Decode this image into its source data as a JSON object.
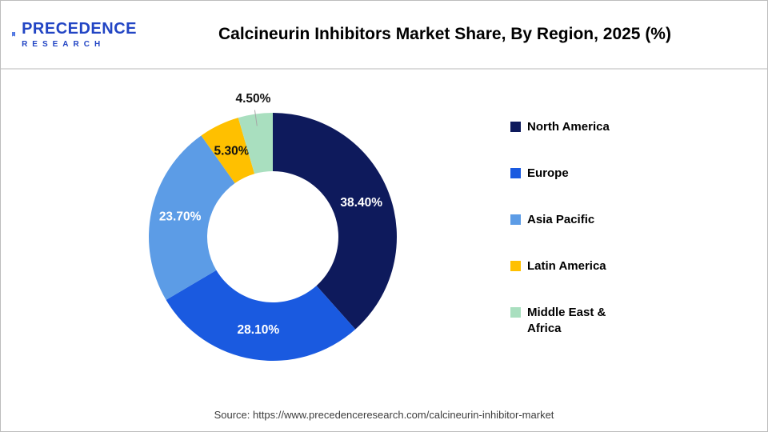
{
  "header": {
    "logo": {
      "line1": "PRECEDENCE",
      "line2": "RESEARCH"
    }
  },
  "chart_data": {
    "type": "pie",
    "subtype": "donut",
    "title": "Calcineurin Inhibitors Market Share, By Region, 2025 (%)",
    "legend_position": "right",
    "unit": "%",
    "slices": [
      {
        "label": "North America",
        "value": 38.4,
        "display": "38.40%",
        "color": "#0E1A5C",
        "label_color": "#FFFFFF",
        "label_position": "inside"
      },
      {
        "label": "Europe",
        "value": 28.1,
        "display": "28.10%",
        "color": "#1A5AE0",
        "label_color": "#FFFFFF",
        "label_position": "inside"
      },
      {
        "label": "Asia Pacific",
        "value": 23.7,
        "display": "23.70%",
        "color": "#5C9CE6",
        "label_color": "#FFFFFF",
        "label_position": "inside"
      },
      {
        "label": "Latin America",
        "value": 5.3,
        "display": "5.30%",
        "color": "#FFC000",
        "label_color": "#111111",
        "label_position": "inside"
      },
      {
        "label": "Middle East & Africa",
        "value": 4.5,
        "display": "4.50%",
        "color": "#A9DFBF",
        "label_color": "#111111",
        "label_position": "outside"
      }
    ]
  },
  "footer": {
    "source": "Source: https://www.precedenceresearch.com/calcineurin-inhibitor-market"
  }
}
